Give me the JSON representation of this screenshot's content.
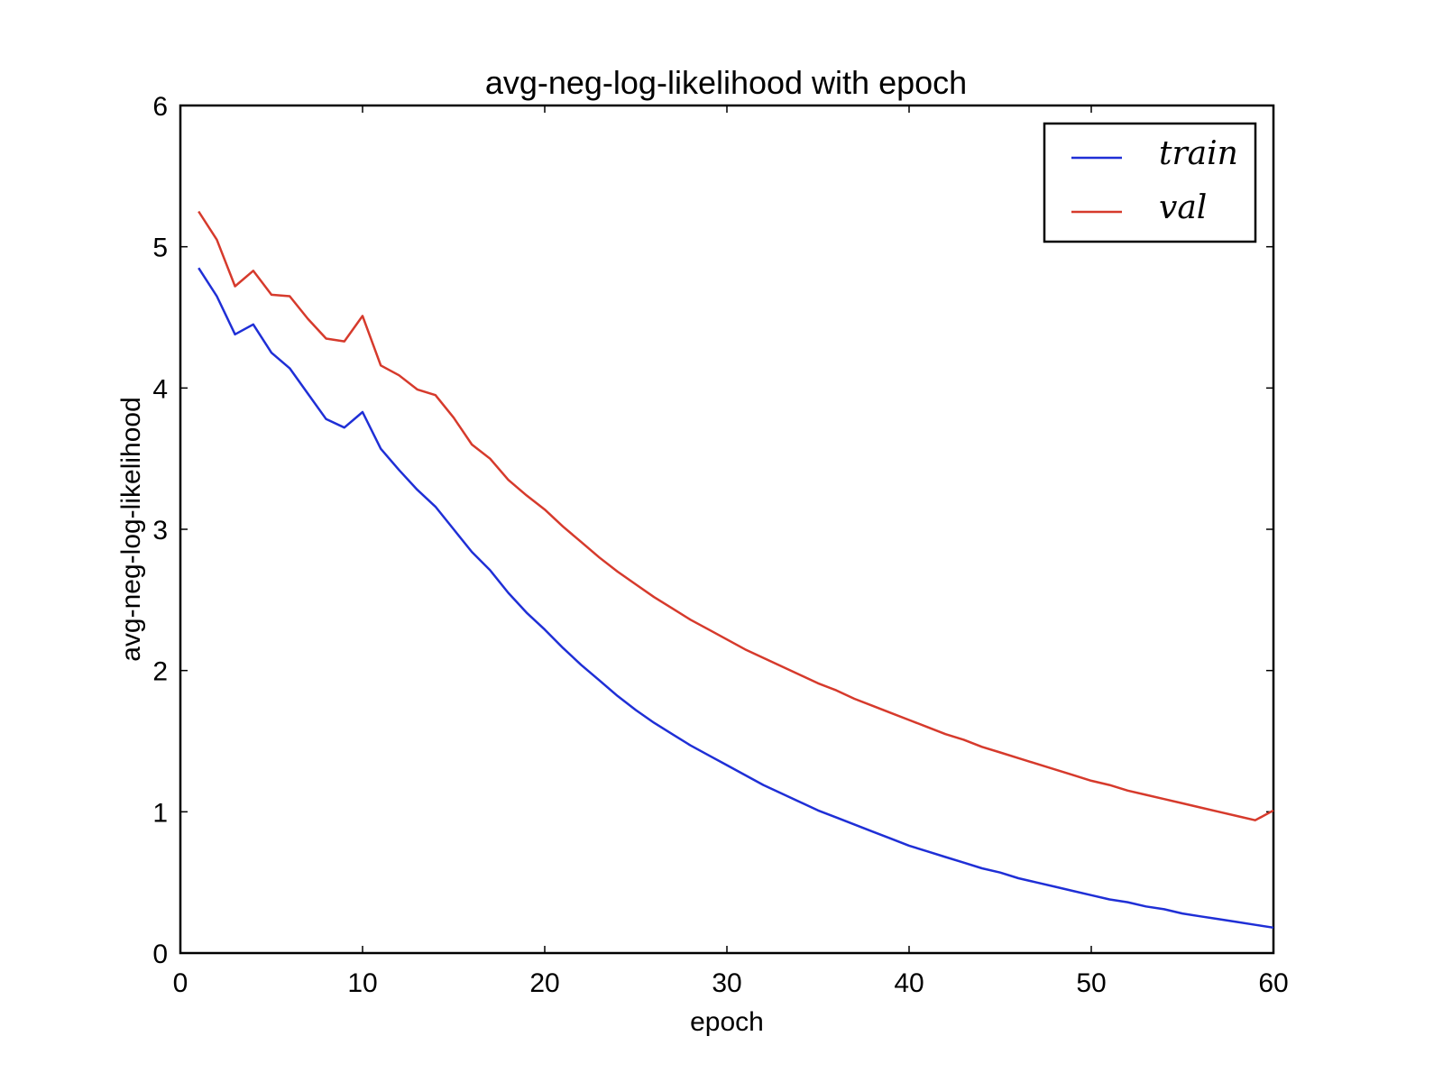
{
  "chart_data": {
    "type": "line",
    "title": "avg-neg-log-likelihood with epoch",
    "xlabel": "epoch",
    "ylabel": "avg-neg-log-likelihood",
    "xlim": [
      0,
      60
    ],
    "ylim": [
      0,
      6
    ],
    "xticks": [
      0,
      10,
      20,
      30,
      40,
      50,
      60
    ],
    "yticks": [
      0,
      1,
      2,
      3,
      4,
      5,
      6
    ],
    "grid": false,
    "legend_position": "top-right",
    "x": [
      1,
      2,
      3,
      4,
      5,
      6,
      7,
      8,
      9,
      10,
      11,
      12,
      13,
      14,
      15,
      16,
      17,
      18,
      19,
      20,
      21,
      22,
      23,
      24,
      25,
      26,
      27,
      28,
      29,
      30,
      31,
      32,
      33,
      34,
      35,
      36,
      37,
      38,
      39,
      40,
      41,
      42,
      43,
      44,
      45,
      46,
      47,
      48,
      49,
      50,
      51,
      52,
      53,
      54,
      55,
      56,
      57,
      58,
      59,
      60
    ],
    "series": [
      {
        "name": "train",
        "color": "#1f2fd6",
        "values": [
          4.85,
          4.65,
          4.38,
          4.45,
          4.25,
          4.14,
          3.96,
          3.78,
          3.72,
          3.83,
          3.57,
          3.42,
          3.28,
          3.16,
          3.0,
          2.84,
          2.71,
          2.55,
          2.41,
          2.29,
          2.16,
          2.04,
          1.93,
          1.82,
          1.72,
          1.63,
          1.55,
          1.47,
          1.4,
          1.33,
          1.26,
          1.19,
          1.13,
          1.07,
          1.01,
          0.96,
          0.91,
          0.86,
          0.81,
          0.76,
          0.72,
          0.68,
          0.64,
          0.6,
          0.57,
          0.53,
          0.5,
          0.47,
          0.44,
          0.41,
          0.38,
          0.36,
          0.33,
          0.31,
          0.28,
          0.26,
          0.24,
          0.22,
          0.2,
          0.18
        ]
      },
      {
        "name": "val",
        "color": "#d63a2c",
        "values": [
          5.25,
          5.05,
          4.72,
          4.83,
          4.66,
          4.65,
          4.49,
          4.35,
          4.33,
          4.51,
          4.16,
          4.09,
          3.99,
          3.95,
          3.79,
          3.6,
          3.5,
          3.35,
          3.24,
          3.14,
          3.02,
          2.91,
          2.8,
          2.7,
          2.61,
          2.52,
          2.44,
          2.36,
          2.29,
          2.22,
          2.15,
          2.09,
          2.03,
          1.97,
          1.91,
          1.86,
          1.8,
          1.75,
          1.7,
          1.65,
          1.6,
          1.55,
          1.51,
          1.46,
          1.42,
          1.38,
          1.34,
          1.3,
          1.26,
          1.22,
          1.19,
          1.15,
          1.12,
          1.09,
          1.06,
          1.03,
          1.0,
          0.97,
          0.94,
          1.01
        ]
      }
    ]
  }
}
